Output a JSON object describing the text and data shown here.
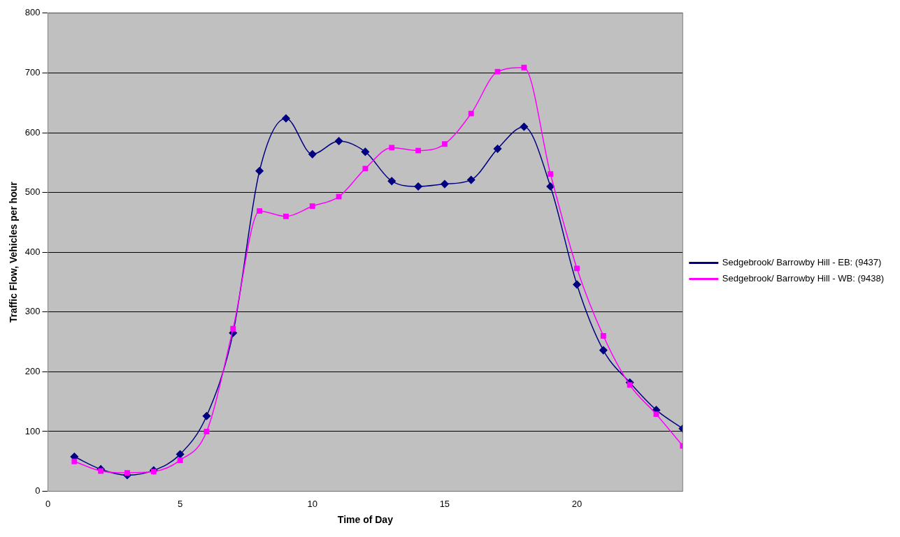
{
  "chart_data": {
    "type": "line",
    "xlabel": "Time of Day",
    "ylabel": "Traffic Flow, Vehicles per hour",
    "x": [
      1,
      2,
      3,
      4,
      5,
      6,
      7,
      8,
      9,
      10,
      11,
      12,
      13,
      14,
      15,
      16,
      17,
      18,
      19,
      20,
      21,
      22,
      23,
      24
    ],
    "series": [
      {
        "name": "Sedgebrook/ Barrowby Hill - EB: (9437)",
        "color": "#000080",
        "marker": "diamond",
        "values": [
          58,
          37,
          27,
          35,
          62,
          126,
          265,
          536,
          624,
          564,
          586,
          568,
          519,
          510,
          514,
          521,
          573,
          610,
          510,
          346,
          236,
          182,
          136,
          105
        ]
      },
      {
        "name": "Sedgebrook/ Barrowby Hill - WB: (9438)",
        "color": "#ff00ff",
        "marker": "square",
        "values": [
          50,
          34,
          31,
          33,
          52,
          100,
          272,
          469,
          460,
          477,
          493,
          540,
          575,
          570,
          581,
          632,
          702,
          709,
          531,
          373,
          260,
          178,
          129,
          76
        ]
      }
    ],
    "xlim": [
      0,
      24
    ],
    "xticks": [
      0,
      5,
      10,
      15,
      20
    ],
    "ylim": [
      0,
      800
    ],
    "yticks": [
      0,
      100,
      200,
      300,
      400,
      500,
      600,
      700,
      800
    ],
    "grid": "y",
    "legend": "right",
    "line_style": "solid"
  }
}
